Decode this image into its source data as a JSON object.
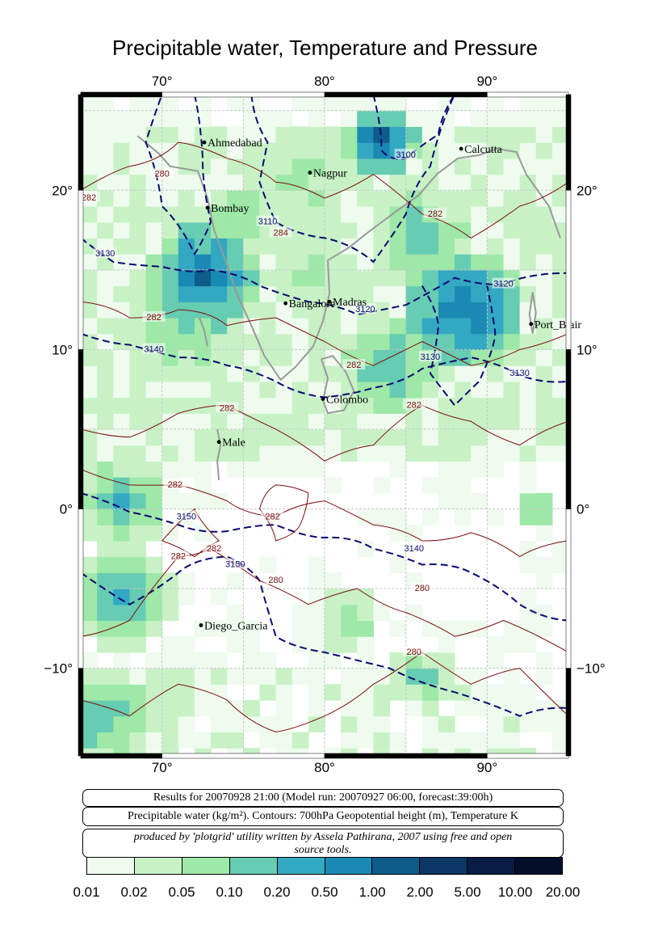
{
  "title": "Precipitable water, Temperature and Pressure",
  "map": {
    "lon_range": [
      65,
      95
    ],
    "lat_range": [
      -15.5,
      26
    ],
    "lon_ticks": [
      "70°",
      "80°",
      "90°"
    ],
    "lat_ticks": [
      "20°",
      "10°",
      "0°",
      "−10°"
    ],
    "cities": [
      {
        "name": "Ahmedabad",
        "lon": 72.6,
        "lat": 23.0
      },
      {
        "name": "Nagpur",
        "lon": 79.1,
        "lat": 21.1
      },
      {
        "name": "Calcutta",
        "lon": 88.4,
        "lat": 22.6
      },
      {
        "name": "Bombay",
        "lon": 72.8,
        "lat": 18.9
      },
      {
        "name": "Bangalore",
        "lon": 77.6,
        "lat": 12.9
      },
      {
        "name": "Madras",
        "lon": 80.3,
        "lat": 13.0
      },
      {
        "name": "Port_Blair",
        "lon": 92.7,
        "lat": 11.6
      },
      {
        "name": "Colombo",
        "lon": 79.9,
        "lat": 6.9
      },
      {
        "name": "Male",
        "lon": 73.5,
        "lat": 4.2
      },
      {
        "name": "Diego_Garcia",
        "lon": 72.4,
        "lat": -7.3
      }
    ],
    "contour_labels": [
      {
        "text": "3130",
        "lon": 66.5,
        "lat": 16.0,
        "kind": "height"
      },
      {
        "text": "3140",
        "lon": 69.5,
        "lat": 10.0,
        "kind": "height"
      },
      {
        "text": "3120",
        "lon": 91.0,
        "lat": 14.1,
        "kind": "height"
      },
      {
        "text": "3130",
        "lon": 92.0,
        "lat": 8.5,
        "kind": "height"
      },
      {
        "text": "3150",
        "lon": 71.5,
        "lat": -0.5,
        "kind": "height"
      },
      {
        "text": "3150",
        "lon": 74.5,
        "lat": -3.5,
        "kind": "height"
      },
      {
        "text": "3140",
        "lon": 85.5,
        "lat": -2.5,
        "kind": "height"
      },
      {
        "text": "3100",
        "lon": 85.0,
        "lat": 22.2,
        "kind": "height"
      },
      {
        "text": "3110",
        "lon": 76.5,
        "lat": 18.0,
        "kind": "height"
      },
      {
        "text": "3120",
        "lon": 82.5,
        "lat": 12.5,
        "kind": "height"
      },
      {
        "text": "3130",
        "lon": 86.5,
        "lat": 9.5,
        "kind": "height"
      },
      {
        "text": "282",
        "lon": 65.5,
        "lat": 19.5,
        "kind": "temp"
      },
      {
        "text": "280",
        "lon": 70.0,
        "lat": 21.0,
        "kind": "temp"
      },
      {
        "text": "282",
        "lon": 69.5,
        "lat": 12.0,
        "kind": "temp"
      },
      {
        "text": "282",
        "lon": 86.8,
        "lat": 18.5,
        "kind": "temp"
      },
      {
        "text": "282",
        "lon": 81.8,
        "lat": 9.0,
        "kind": "temp"
      },
      {
        "text": "282",
        "lon": 85.5,
        "lat": 6.5,
        "kind": "temp"
      },
      {
        "text": "282",
        "lon": 74.0,
        "lat": 6.3,
        "kind": "temp"
      },
      {
        "text": "282",
        "lon": 70.8,
        "lat": 1.5,
        "kind": "temp"
      },
      {
        "text": "282",
        "lon": 71.0,
        "lat": -3.0,
        "kind": "temp"
      },
      {
        "text": "282",
        "lon": 73.2,
        "lat": -2.5,
        "kind": "temp"
      },
      {
        "text": "282",
        "lon": 76.8,
        "lat": -0.5,
        "kind": "temp"
      },
      {
        "text": "280",
        "lon": 77.0,
        "lat": -4.5,
        "kind": "temp"
      },
      {
        "text": "280",
        "lon": 86.0,
        "lat": -5.0,
        "kind": "temp"
      },
      {
        "text": "280",
        "lon": 85.5,
        "lat": -9.0,
        "kind": "temp"
      },
      {
        "text": "284",
        "lon": 77.3,
        "lat": 17.3,
        "kind": "temp"
      }
    ]
  },
  "info": {
    "line1": "Results for 20070928 21:00 (Model run: 20070927 06:00, forecast:39:00h)",
    "line2": "Precipitable water (kg/m²).  Contours: 700hPa Geopotential height (m), Temperature K",
    "line3a": "produced by 'plotgrid' utility written by Assela Pathirana, 2007 using free and open",
    "line3b": "source tools."
  },
  "colorbar": {
    "colors": [
      "#eefbee",
      "#c8f2c6",
      "#9ee8a8",
      "#66ccb2",
      "#33a8c2",
      "#1a8ab4",
      "#0e5c8a",
      "#0a3766",
      "#071d46",
      "#04102a"
    ],
    "labels": [
      "0.01",
      "0.02",
      "0.05",
      "0.10",
      "0.20",
      "0.50",
      "1.00",
      "2.00",
      "5.00",
      "10.00",
      "20.00"
    ]
  },
  "colors": {
    "height_contour": "#0a0a6e",
    "temp_contour": "#7a0d0d",
    "coast": "#999999",
    "grid": "#c8c8c8"
  }
}
